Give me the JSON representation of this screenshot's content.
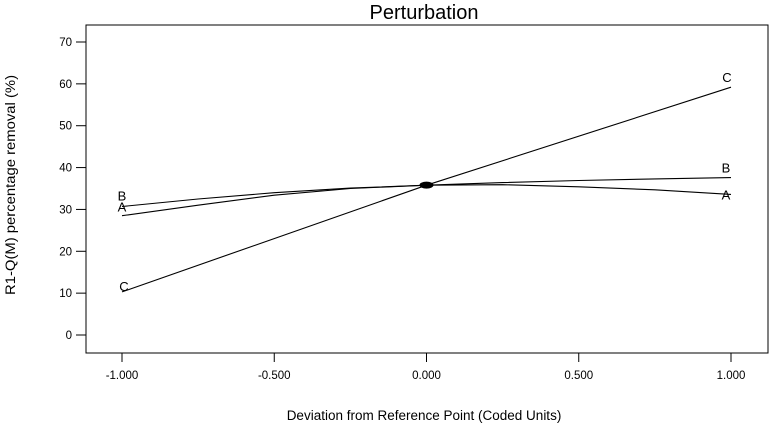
{
  "chart_data": {
    "type": "line",
    "title": "Perturbation",
    "xlabel": "Deviation from Reference Point (Coded Units)",
    "ylabel": "R1-Q(M) percentage removal (%)",
    "xlim": [
      -1.0,
      1.0
    ],
    "ylim": [
      0,
      70
    ],
    "xticks": [
      -1.0,
      -0.5,
      0.0,
      0.5,
      1.0
    ],
    "xtick_labels": [
      "-1.000",
      "-0.500",
      "0.000",
      "0.500",
      "1.000"
    ],
    "yticks": [
      0,
      10,
      20,
      30,
      40,
      50,
      60,
      70
    ],
    "ytick_labels": [
      "0",
      "10",
      "20",
      "30",
      "40",
      "50",
      "60",
      "70"
    ],
    "grid": false,
    "legend": "none",
    "reference_point": {
      "x": 0.0,
      "y": 35.8
    },
    "series": [
      {
        "name": "A",
        "x": [
          -1.0,
          -0.75,
          -0.5,
          -0.25,
          0.0,
          0.25,
          0.5,
          0.75,
          1.0
        ],
        "y": [
          28.5,
          31.0,
          33.4,
          35.0,
          35.8,
          35.9,
          35.4,
          34.7,
          33.6
        ]
      },
      {
        "name": "B",
        "x": [
          -1.0,
          -0.75,
          -0.5,
          -0.25,
          0.0,
          0.25,
          0.5,
          0.75,
          1.0
        ],
        "y": [
          30.7,
          32.5,
          34.0,
          35.1,
          35.8,
          36.4,
          36.9,
          37.3,
          37.6
        ]
      },
      {
        "name": "C",
        "x": [
          -1.0,
          0.0,
          1.0
        ],
        "y": [
          10.3,
          35.8,
          59.2
        ]
      }
    ]
  }
}
